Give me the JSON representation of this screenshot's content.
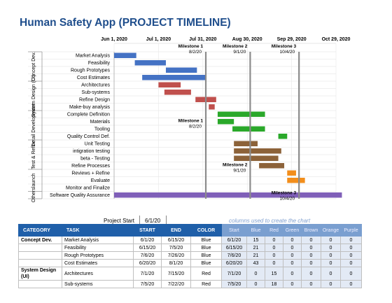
{
  "title": "Human Safety App (PROJECT TIMELINE)",
  "chart_data": {
    "type": "gantt",
    "date_ticks": [
      "Jun 1, 2020",
      "Jul 1, 2020",
      "Jul 31, 2020",
      "Aug 30, 2020",
      "Sep 29, 2020",
      "Oct 29, 2020"
    ],
    "x_range": [
      "2020-06-01",
      "2020-10-29"
    ],
    "groups": [
      {
        "label": "Concept Dev.",
        "tasks": [
          {
            "name": "Market Analysis",
            "start": "2020-06-01",
            "days": 15,
            "color": "#4472c4"
          },
          {
            "name": "Feasibility",
            "start": "2020-06-15",
            "days": 21,
            "color": "#4472c4"
          },
          {
            "name": "Rough Prototypes",
            "start": "2020-07-06",
            "days": 21,
            "color": "#4472c4"
          },
          {
            "name": "Cost Estimates",
            "start": "2020-06-20",
            "days": 43,
            "color": "#4472c4"
          }
        ]
      },
      {
        "label": "System Design (UI)",
        "tasks": [
          {
            "name": "Architectures",
            "start": "2020-07-01",
            "days": 15,
            "color": "#c0504d"
          },
          {
            "name": "Sub-systems",
            "start": "2020-07-05",
            "days": 18,
            "color": "#c0504d"
          },
          {
            "name": "Refine Design",
            "start": "2020-07-26",
            "days": 14,
            "color": "#c0504d"
          },
          {
            "name": "Make-buy analysis",
            "start": "2020-08-04",
            "days": 4,
            "color": "#c0504d"
          }
        ]
      },
      {
        "label": "Detail Development",
        "tasks": [
          {
            "name": "Complete Definition",
            "start": "2020-08-10",
            "days": 32,
            "color": "#2aa82a"
          },
          {
            "name": "Materials",
            "start": "2020-08-10",
            "days": 11,
            "color": "#2aa82a"
          },
          {
            "name": "Tooling",
            "start": "2020-08-20",
            "days": 22,
            "color": "#2aa82a"
          },
          {
            "name": "Quality Control Def.",
            "start": "2020-09-20",
            "days": 6,
            "color": "#2aa82a"
          }
        ]
      },
      {
        "label": "Test & Refine",
        "tasks": [
          {
            "name": "Unit Testing",
            "start": "2020-08-21",
            "days": 16,
            "color": "#8c6239"
          },
          {
            "name": "intigration testing",
            "start": "2020-08-21",
            "days": 32,
            "color": "#8c6239"
          },
          {
            "name": "beta - Testing",
            "start": "2020-08-21",
            "days": 30,
            "color": "#8c6239"
          },
          {
            "name": "Refine Processes",
            "start": "2020-09-07",
            "days": 17,
            "color": "#8c6239"
          }
        ]
      },
      {
        "label": "launch",
        "tasks": [
          {
            "name": "Reviews + Refine",
            "start": "2020-09-26",
            "days": 6,
            "color": "#f28e1c"
          },
          {
            "name": "Evaluate",
            "start": "2020-09-26",
            "days": 12,
            "color": "#f28e1c"
          },
          {
            "name": "Monitor and Finalize",
            "start": "2020-10-08",
            "days": 0,
            "color": "#f28e1c"
          }
        ]
      },
      {
        "label": "Others",
        "tasks": [
          {
            "name": "Software Quality Assurance",
            "start": "2020-06-01",
            "days": 154,
            "color": "#7f5fb8"
          }
        ]
      }
    ],
    "milestones": [
      {
        "label": "Milestone 1",
        "date_text": "8/2/20",
        "date": "2020-08-02"
      },
      {
        "label": "Milestone 2",
        "date_text": "9/1/20",
        "date": "2020-09-01"
      },
      {
        "label": "Milestone 3",
        "date_text": "10/4/20",
        "date": "2020-10-04"
      }
    ]
  },
  "summary": {
    "project_start_label": "Project Start",
    "project_start_value": "6/1/20",
    "columns_note": "columns used to create the chart"
  },
  "table": {
    "headers": [
      "CATEGORY",
      "TASK",
      "START",
      "END",
      "COLOR",
      "Start",
      "Blue",
      "Red",
      "Green",
      "Brown",
      "Orange",
      "Purple"
    ],
    "rows": [
      [
        "Concept Dev.",
        "Market Analysis",
        "6/1/20",
        "6/15/20",
        "Blue",
        "6/1/20",
        "15",
        "0",
        "0",
        "0",
        "0",
        "0"
      ],
      [
        "",
        "Feasibility",
        "6/15/20",
        "7/5/20",
        "Blue",
        "6/15/20",
        "21",
        "0",
        "0",
        "0",
        "0",
        "0"
      ],
      [
        "",
        "Rough Prototypes",
        "7/6/20",
        "7/26/20",
        "Blue",
        "7/6/20",
        "21",
        "0",
        "0",
        "0",
        "0",
        "0"
      ],
      [
        "",
        "Cost Estimates",
        "6/20/20",
        "8/1/20",
        "Blue",
        "6/20/20",
        "43",
        "0",
        "0",
        "0",
        "0",
        "0"
      ],
      [
        "System Design (UI)",
        "Architectures",
        "7/1/20",
        "7/15/20",
        "Red",
        "7/1/20",
        "0",
        "15",
        "0",
        "0",
        "0",
        "0"
      ],
      [
        "",
        "Sub-systems",
        "7/5/20",
        "7/22/20",
        "Red",
        "7/5/20",
        "0",
        "18",
        "0",
        "0",
        "0",
        "0"
      ]
    ]
  }
}
